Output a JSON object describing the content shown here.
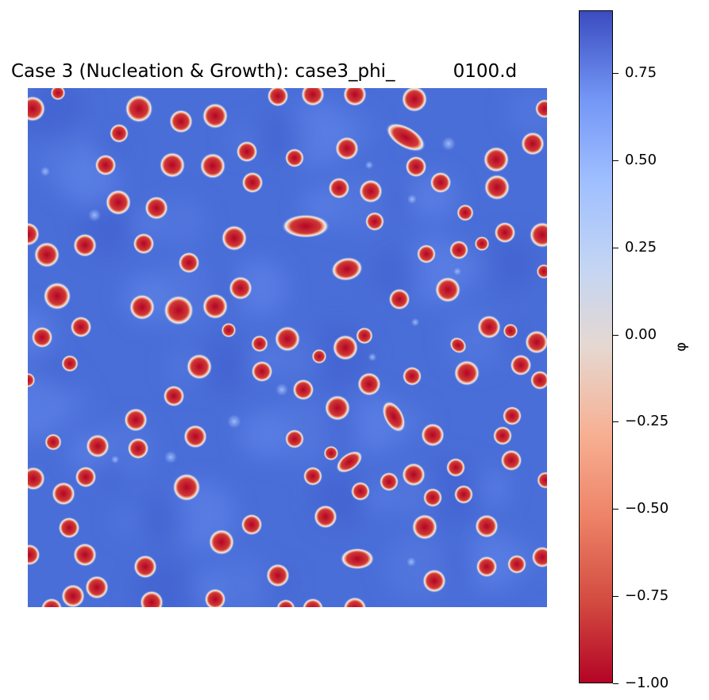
{
  "chart_data": {
    "type": "heatmap",
    "title": "Case 3 (Nucleation & Growth): case3_phi_          0100.d",
    "xlabel": "",
    "ylabel": "",
    "axes_visible": false,
    "colormap": "coolwarm",
    "colorbar": {
      "label": "φ",
      "vmin": -1.0,
      "vmax": 0.93,
      "ticks": [
        0.75,
        0.5,
        0.25,
        0.0,
        -0.25,
        -0.5,
        -0.75,
        -1.0
      ],
      "tick_labels": [
        "0.75",
        "0.50",
        "0.25",
        "0.00",
        "−0.25",
        "−0.50",
        "−0.75",
        "−1.00"
      ],
      "placement": "right"
    },
    "background_value": 0.85,
    "droplet_value": -1.0
  },
  "colors": {
    "matrix": "#4a6ed8",
    "droplet_core": "#b40426",
    "droplet_rim": "#f2f2f2"
  }
}
